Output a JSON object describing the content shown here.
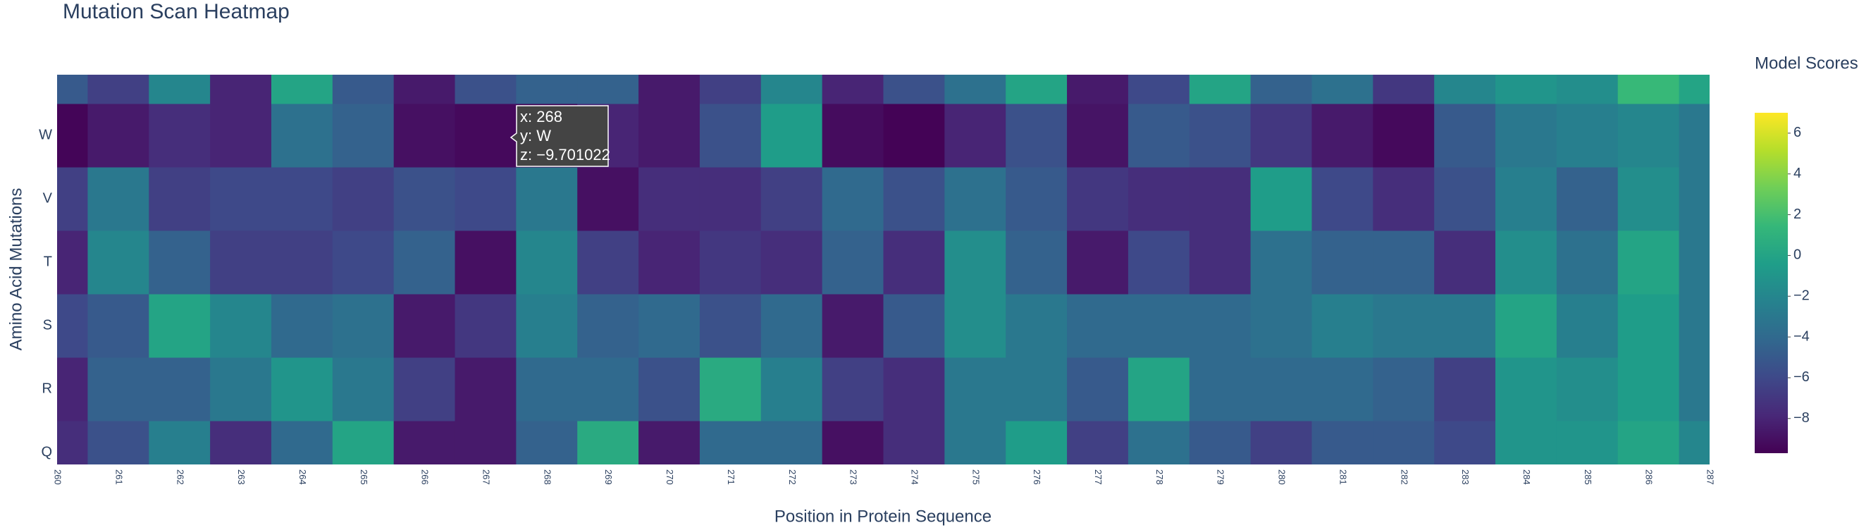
{
  "chart_data": {
    "type": "heatmap",
    "title": "Mutation Scan Heatmap",
    "x_label": "Position in Protein Sequence",
    "y_label": "Amino Acid Mutations",
    "colorbar_title": "Model Scores",
    "x": [
      260,
      261,
      262,
      263,
      264,
      265,
      266,
      267,
      268,
      269,
      270,
      271,
      272,
      273,
      274,
      275,
      276,
      277,
      278,
      279,
      280,
      281,
      282,
      283,
      284,
      285,
      286,
      287
    ],
    "y": [
      "Q",
      "R",
      "S",
      "T",
      "V",
      "W",
      null
    ],
    "z": [
      [
        -7.5,
        -5.5,
        -2.5,
        -7.5,
        -4,
        0,
        -8.5,
        -8.5,
        -4.5,
        0.5,
        -8.5,
        -4,
        -4,
        -9,
        -7.5,
        -3,
        -0.5,
        -6.5,
        -3.5,
        -5,
        -6.5,
        -5,
        -5,
        -6,
        -1,
        -1,
        0,
        -2
      ],
      [
        -8,
        -4.5,
        -4.5,
        -3,
        -1,
        -3,
        -6.5,
        -8.5,
        -4,
        -4,
        -5.5,
        0.5,
        -2.5,
        -6.5,
        -7.5,
        -3,
        -3,
        -5,
        0,
        -4,
        -4,
        -4,
        -4.5,
        -6.5,
        -1,
        -1.5,
        -0.5,
        -3
      ],
      [
        -6,
        -5,
        0,
        -2,
        -4,
        -3.5,
        -8.5,
        -7,
        -2.5,
        -4.5,
        -4,
        -5.5,
        -4,
        -8.5,
        -5,
        -1.5,
        -3,
        -4,
        -4,
        -4,
        -3.5,
        -2.5,
        -3,
        -3,
        0,
        -2.5,
        -0.5,
        -3
      ],
      [
        -8,
        -2,
        -4.5,
        -6.5,
        -6.5,
        -6,
        -4.5,
        -9,
        -2,
        -6.5,
        -8,
        -7,
        -7.5,
        -4.5,
        -7.5,
        -1.5,
        -4.5,
        -8.5,
        -6,
        -7.5,
        -3.5,
        -4.5,
        -4.5,
        -7.5,
        -1.5,
        -3.5,
        0,
        -3
      ],
      [
        -6.5,
        -3,
        -6.5,
        -6,
        -6,
        -6.5,
        -5.5,
        -6,
        -3,
        -9,
        -7.5,
        -7.5,
        -6.5,
        -4,
        -5.5,
        -3.5,
        -5,
        -7,
        -7.5,
        -7.5,
        -0.5,
        -6,
        -7.5,
        -5.5,
        -2.5,
        -4.5,
        -1.5,
        -3
      ],
      [
        -9.5,
        -8.5,
        -7.5,
        -8,
        -3.5,
        -4.5,
        -9,
        -9.3,
        -9.701022,
        -8,
        -8.5,
        -5.5,
        -0.5,
        -9.2,
        -9.6,
        -8,
        -5.5,
        -8.8,
        -5,
        -5.5,
        -7,
        -8.5,
        -9.3,
        -5,
        -3,
        -2.5,
        -2,
        -3
      ],
      [
        -5,
        -6.5,
        -2,
        -8,
        0,
        -5,
        -8.5,
        -5.5,
        -4.5,
        -4.5,
        -8.5,
        -6.5,
        -2,
        -8,
        -5.5,
        -3.5,
        0,
        -8.5,
        -6,
        0,
        -4.5,
        -3.5,
        -7,
        -2,
        -1,
        -1.5,
        1.5,
        0
      ]
    ],
    "xlim": [
      260,
      287
    ],
    "xticks": [
      260,
      261,
      262,
      263,
      264,
      265,
      266,
      267,
      268,
      269,
      270,
      271,
      272,
      273,
      274,
      275,
      276,
      277,
      278,
      279,
      280,
      281,
      282,
      283,
      284,
      285,
      286,
      287
    ],
    "zlim": [
      -9.701022,
      7
    ],
    "zticks": [
      {
        "value": 6,
        "label": "6"
      },
      {
        "value": 4,
        "label": "4"
      },
      {
        "value": 2,
        "label": "2"
      },
      {
        "value": 0,
        "label": "0"
      },
      {
        "value": -2,
        "label": "−2"
      },
      {
        "value": -4,
        "label": "−4"
      },
      {
        "value": -6,
        "label": "−6"
      },
      {
        "value": -8,
        "label": "−8"
      }
    ],
    "colorscale": [
      "#440154",
      "#482878",
      "#3e4989",
      "#31688e",
      "#26828e",
      "#1f9e89",
      "#35b779",
      "#6ece58",
      "#b5de2b",
      "#fde725"
    ],
    "hover": {
      "x": "x: 268",
      "y": "y: W",
      "z": "z: −9.701022"
    }
  }
}
